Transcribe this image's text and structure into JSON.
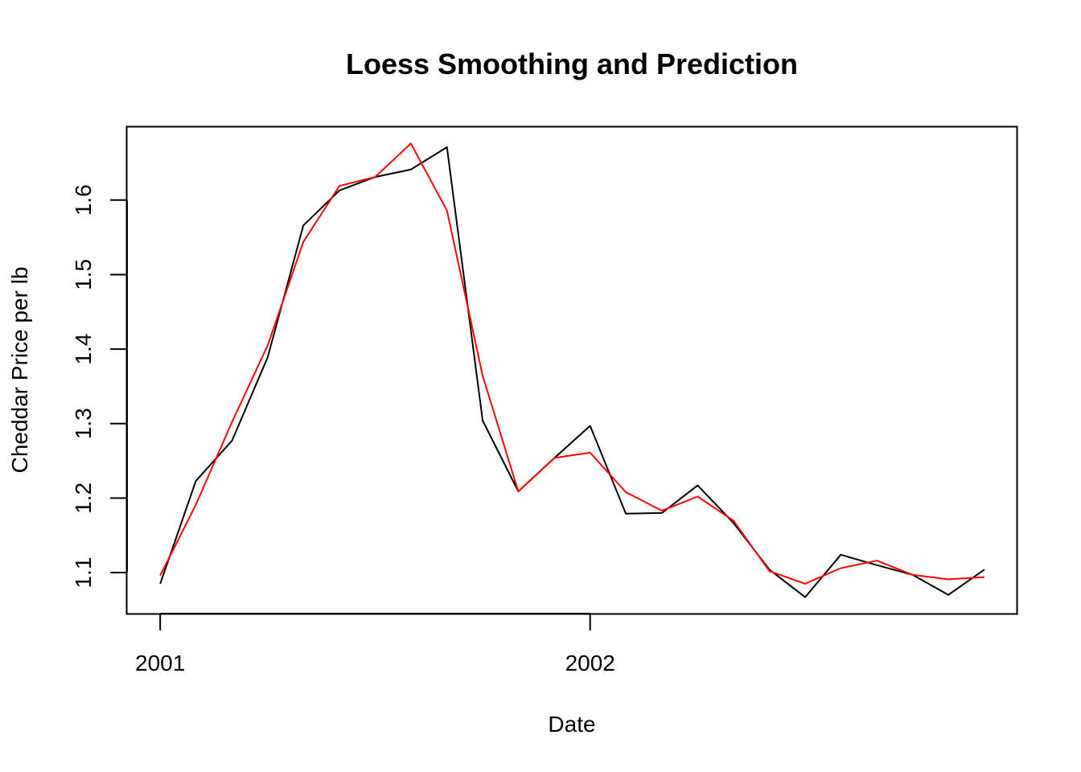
{
  "chart_data": {
    "type": "line",
    "title": "Loess Smoothing and Prediction",
    "xlabel": "Date",
    "ylabel": "Cheddar Price per lb",
    "xlim": [
      2000.923,
      2002.992
    ],
    "ylim": [
      1.045,
      1.698
    ],
    "x_ticks": [
      {
        "value": 2001,
        "label": "2001"
      },
      {
        "value": 2002,
        "label": "2002"
      }
    ],
    "y_ticks": [
      {
        "value": 1.1,
        "label": "1.1"
      },
      {
        "value": 1.2,
        "label": "1.2"
      },
      {
        "value": 1.3,
        "label": "1.3"
      },
      {
        "value": 1.4,
        "label": "1.4"
      },
      {
        "value": 1.5,
        "label": "1.5"
      },
      {
        "value": 1.6,
        "label": "1.6"
      }
    ],
    "x": [
      2001.0,
      2001.083,
      2001.167,
      2001.25,
      2001.333,
      2001.417,
      2001.5,
      2001.583,
      2001.667,
      2001.75,
      2001.833,
      2001.917,
      2002.0,
      2002.083,
      2002.167,
      2002.25,
      2002.333,
      2002.417,
      2002.5,
      2002.583,
      2002.667,
      2002.75,
      2002.833,
      2002.917
    ],
    "series": [
      {
        "color": "#000000",
        "values": [
          1.085,
          1.223,
          1.277,
          1.389,
          1.566,
          1.613,
          1.631,
          1.641,
          1.671,
          1.304,
          1.209,
          1.254,
          1.297,
          1.179,
          1.18,
          1.217,
          1.167,
          1.104,
          1.067,
          1.124,
          1.11,
          1.097,
          1.07,
          1.104
        ]
      },
      {
        "color": "#ff0000",
        "values": [
          1.096,
          1.191,
          1.302,
          1.405,
          1.544,
          1.619,
          1.631,
          1.676,
          1.586,
          1.364,
          1.209,
          1.254,
          1.261,
          1.208,
          1.183,
          1.202,
          1.17,
          1.102,
          1.085,
          1.106,
          1.116,
          1.097,
          1.091,
          1.094
        ]
      }
    ]
  }
}
